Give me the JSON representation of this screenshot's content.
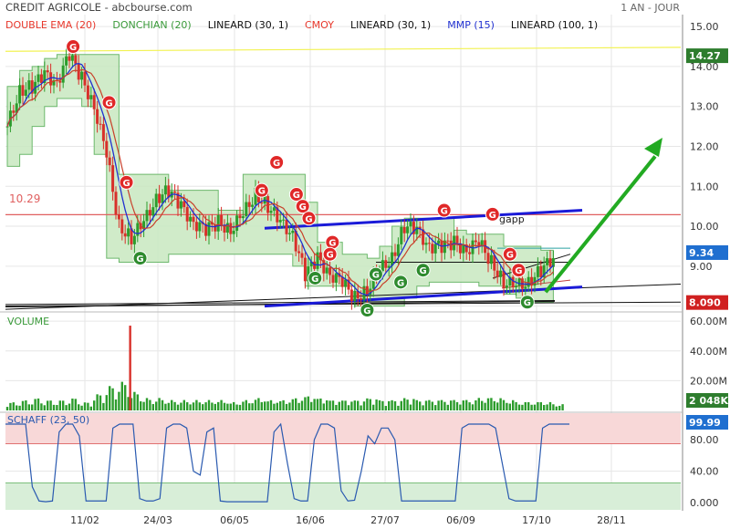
{
  "header": {
    "instrument": "CREDIT AGRICOLE - abcbourse.com",
    "period": "1 AN - JOUR"
  },
  "legend": [
    {
      "label": "DOUBLE EMA (20)",
      "color": "#e8372b"
    },
    {
      "label": "DONCHIAN (20)",
      "color": "#3a9a3a"
    },
    {
      "label": "LINEARD (30, 1)",
      "color": "#111111"
    },
    {
      "label": "CMOY",
      "color": "#e8372b"
    },
    {
      "label": "LINEARD (30, 1)",
      "color": "#111111"
    },
    {
      "label": "MMP (15)",
      "color": "#2030d0"
    },
    {
      "label": "LINEARD (100, 1)",
      "color": "#111111"
    }
  ],
  "colors": {
    "up_candle": "#2c9c2c",
    "down_candle": "#d8302a",
    "donchian_fill": "#c8e8c0",
    "donchian_line": "#6cb86c",
    "channel": "#1a1ad8",
    "arrow": "#22aa22",
    "hline": "#e06060",
    "yellow_line": "#f2f250",
    "schaff_line": "#2a5ab0",
    "schaff_high_band": "#f8d8d8",
    "schaff_low_band": "#d8eed8",
    "volume_bar": "#2c9c2c",
    "badge_green": "#2e8b2e",
    "badge_red": "#e02828",
    "last_price_tag": "#2e7d2e",
    "current_tag": "#1f6fd0",
    "low_tag": "#d02020"
  },
  "chart_data": [
    {
      "type": "candlestick",
      "panel": "price",
      "x_ticks": [
        "11/02",
        "24/03",
        "06/05",
        "16/06",
        "27/07",
        "06/09",
        "17/10",
        "28/11"
      ],
      "y_ticks": [
        8.0,
        9.0,
        10.0,
        11.0,
        12.0,
        13.0,
        14.0,
        15.0
      ],
      "ylim": [
        7.9,
        15.3
      ],
      "price_path_week_close": [
        12.5,
        13.4,
        13.5,
        13.8,
        13.6,
        14.3,
        13.7,
        13.0,
        11.8,
        10.0,
        9.7,
        10.1,
        10.7,
        10.9,
        10.5,
        10.1,
        9.9,
        10.1,
        9.9,
        10.3,
        10.8,
        10.5,
        10.1,
        9.8,
        8.8,
        9.2,
        8.8,
        8.6,
        8.2,
        8.4,
        8.9,
        9.2,
        10.0,
        9.9,
        9.5,
        9.5,
        9.6,
        9.4,
        9.6,
        9.1,
        8.6,
        8.5,
        8.6,
        8.9,
        9.2
      ],
      "donchian_upper": [
        13.5,
        13.9,
        14.0,
        14.2,
        14.3,
        14.3,
        14.3,
        14.3,
        14.3,
        11.3,
        11.3,
        11.3,
        11.3,
        10.9,
        10.9,
        10.9,
        10.9,
        10.4,
        10.4,
        11.3,
        11.3,
        11.3,
        11.3,
        11.3,
        10.6,
        9.6,
        9.6,
        9.3,
        9.3,
        9.2,
        9.5,
        10.0,
        10.2,
        10.2,
        10.2,
        10.2,
        9.9,
        9.8,
        9.8,
        9.8,
        9.5,
        9.5,
        9.5,
        9.4,
        9.4
      ],
      "donchian_lower": [
        11.5,
        11.8,
        12.5,
        13.0,
        13.2,
        13.2,
        13.0,
        11.8,
        9.2,
        9.1,
        9.1,
        9.1,
        9.1,
        9.3,
        9.3,
        9.3,
        9.3,
        9.3,
        9.3,
        9.3,
        9.3,
        9.3,
        9.3,
        9.0,
        8.5,
        8.5,
        8.5,
        8.5,
        8.0,
        8.0,
        8.0,
        8.0,
        8.2,
        8.5,
        8.6,
        8.6,
        8.6,
        8.6,
        8.5,
        8.5,
        8.3,
        8.2,
        8.1,
        8.1,
        8.1
      ],
      "horizontal_line": {
        "value": 10.29,
        "label": "10.29"
      },
      "yellow_trendline": {
        "from": 14.38,
        "to": 14.48
      },
      "price_tags": [
        {
          "value": 14.27,
          "label": "14.27",
          "kind": "high"
        },
        {
          "value": 9.34,
          "label": "9.34",
          "kind": "current"
        },
        {
          "value": 8.09,
          "label": "8.090",
          "kind": "low"
        }
      ],
      "annotations": [
        {
          "text": "gapp"
        }
      ],
      "signals": [
        {
          "type": "G",
          "color": "red",
          "week": 5.3,
          "value": 14.5
        },
        {
          "type": "G",
          "color": "red",
          "week": 8.2,
          "value": 13.1
        },
        {
          "type": "G",
          "color": "red",
          "week": 9.6,
          "value": 11.1
        },
        {
          "type": "G",
          "color": "green",
          "week": 10.7,
          "value": 9.2
        },
        {
          "type": "G",
          "color": "red",
          "week": 21.7,
          "value": 11.6
        },
        {
          "type": "G",
          "color": "red",
          "week": 20.5,
          "value": 10.9
        },
        {
          "type": "G",
          "color": "red",
          "week": 23.3,
          "value": 10.8
        },
        {
          "type": "G",
          "color": "red",
          "week": 23.8,
          "value": 10.5
        },
        {
          "type": "G",
          "color": "red",
          "week": 24.3,
          "value": 10.2
        },
        {
          "type": "G",
          "color": "red",
          "week": 26.2,
          "value": 9.6
        },
        {
          "type": "G",
          "color": "red",
          "week": 26.0,
          "value": 9.3
        },
        {
          "type": "G",
          "color": "green",
          "week": 24.8,
          "value": 8.7
        },
        {
          "type": "G",
          "color": "green",
          "week": 29.0,
          "value": 7.9
        },
        {
          "type": "G",
          "color": "green",
          "week": 29.7,
          "value": 8.8
        },
        {
          "type": "G",
          "color": "green",
          "week": 31.7,
          "value": 8.6
        },
        {
          "type": "G",
          "color": "green",
          "week": 33.5,
          "value": 8.9
        },
        {
          "type": "G",
          "color": "red",
          "week": 35.2,
          "value": 10.4
        },
        {
          "type": "G",
          "color": "red",
          "week": 39.1,
          "value": 10.3
        },
        {
          "type": "G",
          "color": "red",
          "week": 40.5,
          "value": 9.3
        },
        {
          "type": "G",
          "color": "red",
          "week": 41.2,
          "value": 8.9
        },
        {
          "type": "G",
          "color": "green",
          "week": 41.9,
          "value": 8.1
        }
      ]
    },
    {
      "type": "bar",
      "panel": "volume",
      "title": "VOLUME",
      "y_ticks": [
        "20.00M",
        "40.00M",
        "60.00M"
      ],
      "ylim": [
        0,
        65
      ],
      "values_millions_weekly": [
        4,
        5,
        6,
        5,
        5,
        6,
        4,
        8,
        12,
        14,
        9,
        6,
        6,
        5,
        5,
        5,
        5,
        5,
        4,
        5,
        6,
        5,
        5,
        6,
        7,
        6,
        5,
        5,
        5,
        6,
        5,
        5,
        6,
        5,
        5,
        5,
        5,
        5,
        6,
        6,
        5,
        4,
        4,
        4,
        3
      ],
      "spike": {
        "week": 10,
        "value": 57
      },
      "last_value": "2 048K"
    },
    {
      "type": "line",
      "panel": "oscillator",
      "title": "SCHAFF (23, 50)",
      "y_ticks": [
        "0.000",
        "40.00",
        "80.00"
      ],
      "ylim": [
        0,
        100
      ],
      "bands": [
        75,
        25
      ],
      "values": [
        100,
        100,
        100,
        100,
        20,
        2,
        1,
        2,
        90,
        100,
        100,
        85,
        2,
        2,
        2,
        2,
        95,
        100,
        100,
        100,
        5,
        2,
        2,
        5,
        95,
        100,
        100,
        95,
        40,
        35,
        90,
        95,
        2,
        1,
        1,
        1,
        1,
        1,
        1,
        1,
        90,
        100,
        50,
        5,
        2,
        2,
        80,
        100,
        100,
        95,
        15,
        2,
        3,
        40,
        85,
        75,
        95,
        95,
        80,
        2,
        2,
        2,
        2,
        2,
        2,
        2,
        2,
        2,
        95,
        100,
        100,
        100,
        100,
        95,
        50,
        5,
        2,
        2,
        2,
        2,
        95,
        100,
        100,
        100,
        100
      ],
      "last_value": "99.99"
    }
  ]
}
